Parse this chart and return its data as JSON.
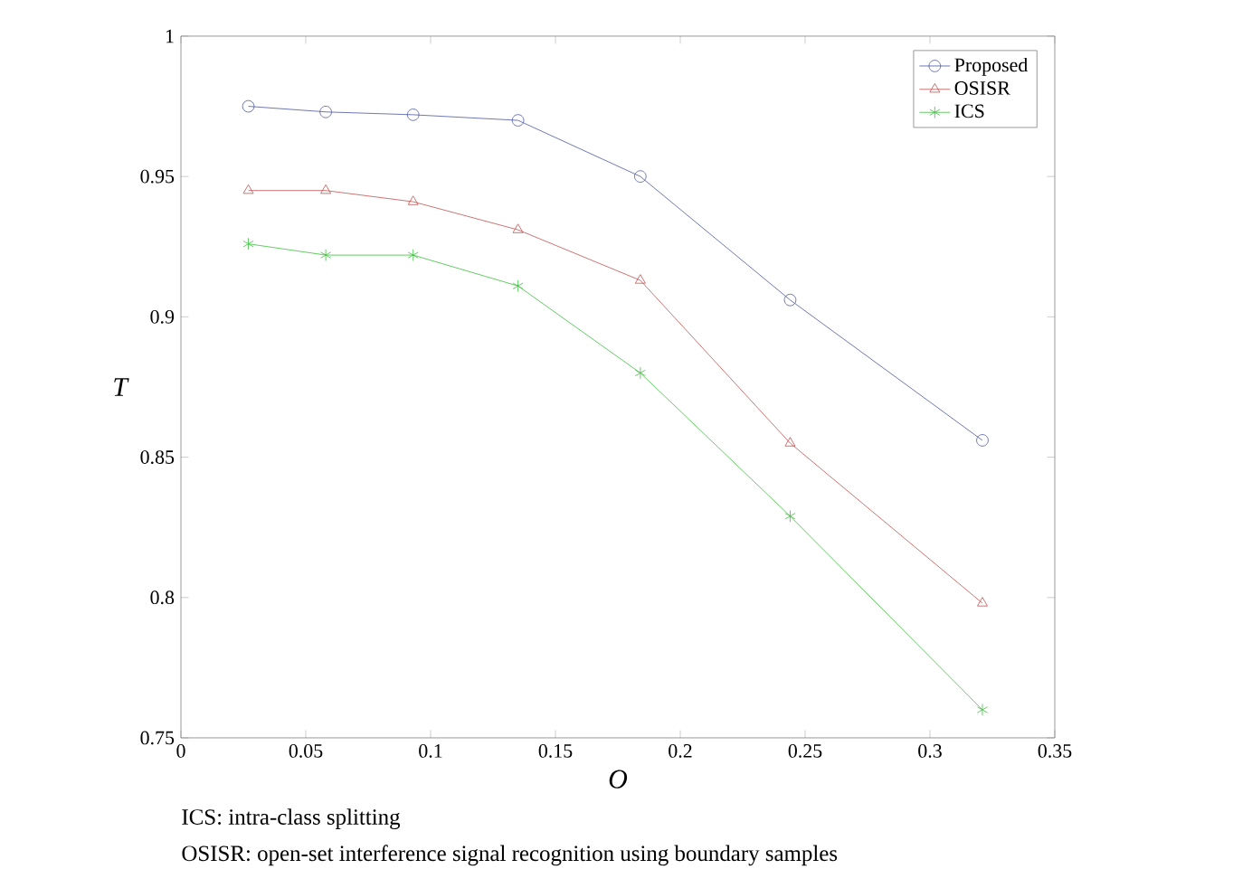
{
  "chart_data": {
    "type": "line",
    "xlabel": "O",
    "ylabel": "T",
    "xlim": [
      0,
      0.35
    ],
    "ylim": [
      0.75,
      1
    ],
    "xticks": [
      0,
      0.05,
      0.1,
      0.15,
      0.2,
      0.25,
      0.3,
      0.35
    ],
    "yticks": [
      0.75,
      0.8,
      0.85,
      0.9,
      0.95,
      1
    ],
    "x": [
      0.027,
      0.058,
      0.093,
      0.135,
      0.184,
      0.244,
      0.321
    ],
    "series": [
      {
        "name": "Proposed",
        "color": "#4a55a0",
        "marker": "circle",
        "values": [
          0.975,
          0.973,
          0.972,
          0.97,
          0.95,
          0.906,
          0.856
        ]
      },
      {
        "name": "OSISR",
        "color": "#c05050",
        "marker": "triangle",
        "values": [
          0.945,
          0.945,
          0.941,
          0.931,
          0.913,
          0.855,
          0.798
        ]
      },
      {
        "name": "ICS",
        "color": "#3cc03c",
        "marker": "cross",
        "values": [
          0.926,
          0.922,
          0.922,
          0.911,
          0.88,
          0.829,
          0.76
        ]
      }
    ],
    "legend": "top right",
    "grid": false,
    "annotations": [
      "ICS: intra-class splitting",
      "OSISR: open-set interference signal recognition using boundary samples"
    ]
  }
}
